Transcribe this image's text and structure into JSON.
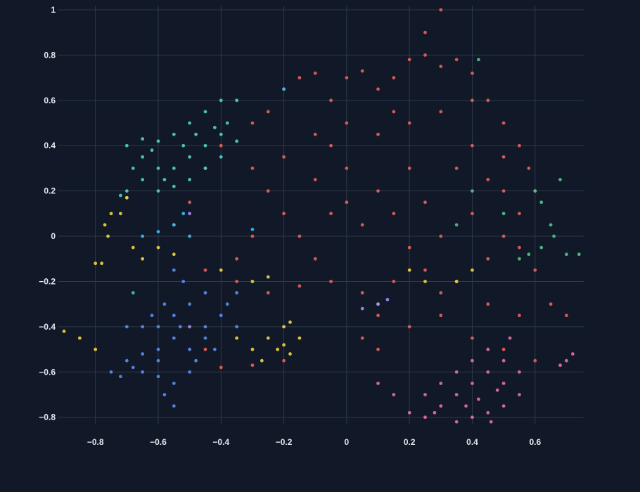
{
  "chart_data": {
    "type": "scatter",
    "xlim": [
      -0.918,
      0.755
    ],
    "ylim": [
      -0.832,
      1.0
    ],
    "grid": true,
    "xticks": [
      {
        "value": -0.8,
        "label": "−0.8"
      },
      {
        "value": -0.6,
        "label": "−0.6"
      },
      {
        "value": -0.4,
        "label": "−0.4"
      },
      {
        "value": -0.2,
        "label": "−0.2"
      },
      0,
      0.2,
      0.4,
      0.6
    ],
    "yticks": [
      {
        "value": -0.8,
        "label": "−0.8"
      },
      {
        "value": -0.6,
        "label": "−0.6"
      },
      {
        "value": -0.4,
        "label": "−0.4"
      },
      {
        "value": -0.2,
        "label": "−0.2"
      },
      0,
      0.2,
      0.4,
      0.6,
      0.8,
      1
    ],
    "series": [
      {
        "color": "#e8605a",
        "x": [
          -0.3,
          -0.25,
          -0.2,
          -0.15,
          -0.1,
          -0.05,
          0,
          0.05,
          0.1,
          0.15,
          0.2,
          0.25,
          0.3,
          0.35,
          0.4,
          0.25,
          0.3,
          0.45,
          0.5,
          0.55,
          0.58,
          0.6,
          0.55,
          0.5,
          0.55,
          0.6,
          0.65,
          0.7,
          -0.3,
          -0.25,
          -0.2,
          -0.1,
          0,
          0.1,
          0.2,
          0.3,
          0.4,
          0.35,
          0.2,
          0.1,
          0,
          -0.1,
          -0.2,
          -0.15,
          -0.05,
          0.05,
          0.15,
          0.25,
          0.3,
          0.4,
          0.45,
          0.35,
          0.25,
          0.15,
          0.05,
          -0.05,
          -0.15,
          -0.25,
          -0.35,
          -0.45,
          -0.55,
          -0.5,
          -0.45,
          -0.4,
          0.1,
          0.2,
          0.3,
          0.4,
          0.5,
          0.6,
          0.1,
          0.05,
          -0.2,
          -0.3,
          -0.4,
          -0.45,
          0.45,
          0.5,
          0.15,
          -0.05,
          0.2,
          -0.1,
          0.3,
          0.45,
          0.55,
          0.5,
          0.4,
          0,
          -0.3,
          -0.35
        ],
        "y": [
          0.5,
          0.55,
          0.65,
          0.7,
          0.72,
          0.6,
          0.7,
          0.73,
          0.65,
          0.7,
          0.78,
          0.8,
          0.75,
          0.78,
          0.72,
          0.9,
          1.0,
          0.6,
          0.5,
          0.4,
          0.3,
          0.2,
          0.1,
          0,
          -0.05,
          -0.15,
          -0.3,
          -0.35,
          0.3,
          0.2,
          0.35,
          0.45,
          0.5,
          0.45,
          0.5,
          0.55,
          0.4,
          0.3,
          0.3,
          0.2,
          0.3,
          0.25,
          0.1,
          0,
          0.1,
          0.05,
          0.1,
          0.15,
          0,
          0.1,
          -0.1,
          -0.2,
          -0.15,
          -0.2,
          -0.25,
          -0.2,
          -0.22,
          -0.25,
          -0.2,
          -0.15,
          0.05,
          0.15,
          0.3,
          0.4,
          -0.35,
          -0.4,
          -0.35,
          -0.45,
          -0.5,
          -0.55,
          -0.5,
          -0.45,
          -0.55,
          -0.57,
          -0.58,
          -0.5,
          0.25,
          0.2,
          0.55,
          0.4,
          -0.05,
          -0.1,
          -0.25,
          -0.3,
          -0.35,
          0.35,
          0.6,
          0.15,
          0,
          -0.1
        ]
      },
      {
        "color": "#4fd1c5",
        "x": [
          -0.7,
          -0.65,
          -0.6,
          -0.55,
          -0.5,
          -0.45,
          -0.4,
          -0.35,
          -0.6,
          -0.55,
          -0.5,
          -0.45,
          -0.4,
          -0.65,
          -0.7,
          -0.72,
          -0.6,
          -0.55,
          -0.5,
          -0.45,
          -0.4,
          -0.38,
          -0.62,
          -0.52,
          -0.48,
          -0.68,
          -0.58,
          -0.65,
          -0.42,
          -0.35
        ],
        "y": [
          0.4,
          0.35,
          0.42,
          0.45,
          0.5,
          0.55,
          0.6,
          0.6,
          0.3,
          0.3,
          0.35,
          0.4,
          0.45,
          0.25,
          0.2,
          0.18,
          0.2,
          0.22,
          0.25,
          0.3,
          0.35,
          0.5,
          0.38,
          0.4,
          0.45,
          0.3,
          0.25,
          0.43,
          0.48,
          0.42
        ]
      },
      {
        "color": "#38bdf8",
        "x": [
          -0.6,
          -0.55,
          -0.52,
          -0.65,
          -0.5,
          -0.7,
          -0.3,
          -0.2
        ],
        "y": [
          0.02,
          0.05,
          0.1,
          0,
          0,
          0.17,
          0.03,
          0.65
        ]
      },
      {
        "color": "#5b8cf0",
        "x": [
          -0.75,
          -0.72,
          -0.7,
          -0.65,
          -0.6,
          -0.58,
          -0.55,
          -0.55,
          -0.5,
          -0.5,
          -0.55,
          -0.6,
          -0.65,
          -0.6,
          -0.55,
          -0.5,
          -0.52,
          -0.55,
          -0.45,
          -0.45,
          -0.4,
          -0.35,
          -0.38,
          -0.7,
          -0.65,
          -0.6,
          -0.48,
          -0.42,
          -0.58,
          -0.62,
          -0.45,
          -0.35,
          -0.53,
          -0.68
        ],
        "y": [
          -0.6,
          -0.62,
          -0.55,
          -0.6,
          -0.62,
          -0.7,
          -0.75,
          -0.65,
          -0.6,
          -0.5,
          -0.45,
          -0.5,
          -0.52,
          -0.4,
          -0.35,
          -0.3,
          -0.2,
          -0.15,
          -0.25,
          -0.4,
          -0.35,
          -0.4,
          -0.3,
          -0.4,
          -0.4,
          -0.55,
          -0.55,
          -0.5,
          -0.3,
          -0.35,
          -0.45,
          -0.25,
          -0.4,
          -0.58
        ]
      },
      {
        "color": "#f2d43b",
        "x": [
          -0.8,
          -0.78,
          -0.76,
          -0.77,
          -0.75,
          -0.72,
          -0.68,
          -0.6,
          -0.55,
          -0.9,
          -0.85,
          -0.8,
          -0.25,
          -0.22,
          -0.2,
          -0.18,
          -0.27,
          -0.3,
          -0.2,
          -0.18,
          -0.35,
          -0.3,
          -0.4,
          -0.25,
          0.2,
          0.25,
          0.35,
          0.4,
          0.1,
          -0.7,
          -0.65,
          -0.15
        ],
        "y": [
          -0.12,
          -0.12,
          0,
          0.05,
          0.1,
          0.1,
          -0.05,
          -0.05,
          -0.08,
          -0.42,
          -0.45,
          -0.5,
          -0.45,
          -0.5,
          -0.48,
          -0.52,
          -0.55,
          -0.5,
          -0.4,
          -0.38,
          -0.45,
          -0.2,
          -0.15,
          -0.18,
          -0.15,
          -0.2,
          -0.2,
          -0.15,
          -0.3,
          0.17,
          -0.1,
          -0.45
        ]
      },
      {
        "color": "#e86fa8",
        "x": [
          0.2,
          0.25,
          0.3,
          0.35,
          0.4,
          0.45,
          0.5,
          0.55,
          0.5,
          0.45,
          0.4,
          0.4,
          0.35,
          0.3,
          0.25,
          0.15,
          0.1,
          0.45,
          0.5,
          0.55,
          0.42,
          0.48,
          0.35,
          0.52,
          0.7,
          0.72,
          0.68,
          0.28,
          0.38,
          0.46
        ],
        "y": [
          -0.78,
          -0.8,
          -0.75,
          -0.82,
          -0.8,
          -0.78,
          -0.75,
          -0.7,
          -0.65,
          -0.6,
          -0.55,
          -0.65,
          -0.7,
          -0.65,
          -0.7,
          -0.7,
          -0.65,
          -0.5,
          -0.55,
          -0.6,
          -0.72,
          -0.68,
          -0.6,
          -0.45,
          -0.55,
          -0.52,
          -0.57,
          -0.78,
          -0.75,
          -0.82
        ]
      },
      {
        "color": "#4cc38a",
        "x": [
          0.6,
          0.62,
          0.65,
          0.66,
          0.62,
          0.58,
          0.55,
          0.5,
          0.4,
          0.7,
          0.74,
          0.68,
          0.42,
          -0.68,
          0.35
        ],
        "y": [
          0.2,
          0.15,
          0.05,
          0,
          -0.05,
          -0.08,
          -0.1,
          0.1,
          0.2,
          -0.08,
          -0.08,
          0.25,
          0.78,
          -0.25,
          0.05
        ]
      },
      {
        "color": "#a78bfa",
        "x": [
          -0.5,
          0.1,
          0.05,
          0.13,
          -0.5
        ],
        "y": [
          0.1,
          -0.3,
          -0.32,
          -0.28,
          -0.4
        ]
      }
    ]
  }
}
